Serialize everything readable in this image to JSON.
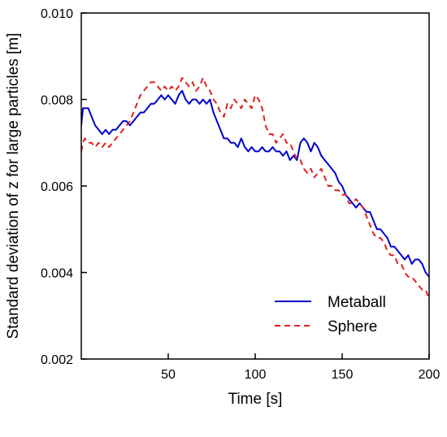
{
  "chart_data": {
    "type": "line",
    "title": "",
    "xlabel": "Time [s]",
    "ylabel": "Standard deviation of z for large particles [m]",
    "xlim": [
      0,
      200
    ],
    "ylim": [
      0.002,
      0.01
    ],
    "x_ticks": [
      50,
      100,
      150,
      200
    ],
    "x_tick_labels": [
      "50",
      "100",
      "150",
      "200"
    ],
    "y_ticks": [
      0.002,
      0.004,
      0.006,
      0.008,
      0.01
    ],
    "y_tick_labels": [
      "0.002",
      "0.004",
      "0.006",
      "0.008",
      "0.010"
    ],
    "grid": false,
    "legend_position": "bottom-right",
    "series": [
      {
        "name": "Metaball",
        "color": "#0000cc",
        "dash": "solid",
        "x": [
          0,
          1,
          2,
          4,
          6,
          8,
          10,
          12,
          14,
          16,
          18,
          20,
          22,
          24,
          26,
          28,
          30,
          32,
          34,
          36,
          38,
          40,
          42,
          44,
          46,
          48,
          50,
          52,
          54,
          56,
          58,
          60,
          62,
          64,
          66,
          68,
          70,
          72,
          74,
          76,
          78,
          80,
          82,
          84,
          86,
          88,
          90,
          92,
          94,
          96,
          98,
          100,
          102,
          104,
          106,
          108,
          110,
          112,
          114,
          116,
          118,
          120,
          122,
          124,
          126,
          128,
          130,
          132,
          134,
          136,
          138,
          140,
          142,
          144,
          146,
          148,
          150,
          152,
          154,
          156,
          158,
          160,
          162,
          164,
          166,
          168,
          170,
          172,
          174,
          176,
          178,
          180,
          182,
          184,
          186,
          188,
          190,
          192,
          194,
          196,
          198,
          200
        ],
        "values": [
          0.0074,
          0.0078,
          0.0078,
          0.0078,
          0.0076,
          0.0074,
          0.0073,
          0.0072,
          0.0073,
          0.0072,
          0.0073,
          0.0073,
          0.0074,
          0.0075,
          0.0075,
          0.0074,
          0.0075,
          0.0076,
          0.0077,
          0.0077,
          0.0078,
          0.0079,
          0.0079,
          0.008,
          0.0081,
          0.008,
          0.0081,
          0.008,
          0.0079,
          0.0081,
          0.0082,
          0.008,
          0.0079,
          0.008,
          0.008,
          0.0079,
          0.008,
          0.0079,
          0.008,
          0.0077,
          0.0075,
          0.0073,
          0.0071,
          0.0071,
          0.007,
          0.007,
          0.0069,
          0.0071,
          0.0069,
          0.0068,
          0.0069,
          0.0068,
          0.0068,
          0.0069,
          0.0068,
          0.0068,
          0.0069,
          0.0068,
          0.0068,
          0.0067,
          0.0068,
          0.0066,
          0.0067,
          0.0066,
          0.007,
          0.0071,
          0.007,
          0.0068,
          0.007,
          0.0069,
          0.0067,
          0.0066,
          0.0065,
          0.0064,
          0.0063,
          0.0061,
          0.006,
          0.0058,
          0.0057,
          0.0056,
          0.0055,
          0.0056,
          0.0055,
          0.0054,
          0.0054,
          0.0052,
          0.005,
          0.005,
          0.0049,
          0.0048,
          0.0046,
          0.0046,
          0.0045,
          0.0044,
          0.0043,
          0.0044,
          0.0042,
          0.0043,
          0.0043,
          0.0042,
          0.004,
          0.0039
        ]
      },
      {
        "name": "Sphere",
        "color": "#e02020",
        "dash": "dashed",
        "x": [
          0,
          1,
          2,
          4,
          6,
          8,
          10,
          12,
          14,
          16,
          18,
          20,
          22,
          24,
          26,
          28,
          30,
          32,
          34,
          36,
          38,
          40,
          42,
          44,
          46,
          48,
          50,
          52,
          54,
          56,
          58,
          60,
          62,
          64,
          66,
          68,
          70,
          72,
          74,
          76,
          78,
          80,
          82,
          84,
          86,
          88,
          90,
          92,
          94,
          96,
          98,
          100,
          102,
          104,
          106,
          108,
          110,
          112,
          114,
          116,
          118,
          120,
          122,
          124,
          126,
          128,
          130,
          132,
          134,
          136,
          138,
          140,
          142,
          144,
          146,
          148,
          150,
          152,
          154,
          156,
          158,
          160,
          162,
          164,
          166,
          168,
          170,
          172,
          174,
          176,
          178,
          180,
          182,
          184,
          186,
          188,
          190,
          192,
          194,
          196,
          198,
          200
        ],
        "values": [
          0.0068,
          0.007,
          0.0071,
          0.007,
          0.007,
          0.0069,
          0.007,
          0.0069,
          0.007,
          0.0069,
          0.007,
          0.0071,
          0.0072,
          0.0073,
          0.0074,
          0.0075,
          0.0077,
          0.0079,
          0.0081,
          0.0082,
          0.0083,
          0.0084,
          0.0084,
          0.0083,
          0.0082,
          0.0083,
          0.0082,
          0.0083,
          0.0082,
          0.0083,
          0.0085,
          0.0084,
          0.0083,
          0.0084,
          0.0082,
          0.0083,
          0.0085,
          0.0083,
          0.0082,
          0.008,
          0.0079,
          0.0077,
          0.0076,
          0.0079,
          0.0078,
          0.008,
          0.0079,
          0.0078,
          0.008,
          0.0079,
          0.0078,
          0.0081,
          0.008,
          0.0078,
          0.0074,
          0.0072,
          0.0072,
          0.007,
          0.0071,
          0.0072,
          0.007,
          0.007,
          0.0068,
          0.0066,
          0.0066,
          0.0064,
          0.0063,
          0.0064,
          0.0062,
          0.0063,
          0.0064,
          0.0062,
          0.006,
          0.006,
          0.0059,
          0.0059,
          0.0058,
          0.0058,
          0.0056,
          0.0056,
          0.0057,
          0.0056,
          0.0055,
          0.0053,
          0.0051,
          0.0049,
          0.0048,
          0.0048,
          0.0047,
          0.0045,
          0.0044,
          0.0044,
          0.0042,
          0.0042,
          0.004,
          0.0039,
          0.0039,
          0.0038,
          0.0037,
          0.0036,
          0.0036,
          0.0034
        ]
      }
    ]
  }
}
